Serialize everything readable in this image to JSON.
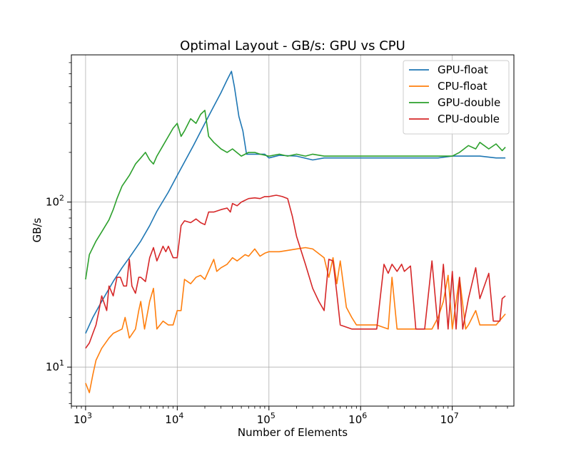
{
  "chart_data": {
    "type": "line",
    "title": "Optimal Layout - GB/s: GPU vs CPU",
    "xlabel": "Number of Elements",
    "ylabel": "GB/s",
    "xscale": "log",
    "yscale": "log",
    "xlim": [
      700,
      47000000
    ],
    "ylim": [
      5.8,
      780
    ],
    "grid": true,
    "legend_position": "top-right",
    "x_ticks": [
      {
        "base": "10",
        "exp": "3",
        "value": 1000
      },
      {
        "base": "10",
        "exp": "4",
        "value": 10000
      },
      {
        "base": "10",
        "exp": "5",
        "value": 100000
      },
      {
        "base": "10",
        "exp": "6",
        "value": 1000000
      },
      {
        "base": "10",
        "exp": "7",
        "value": 10000000
      }
    ],
    "y_ticks": [
      {
        "base": "10",
        "exp": "1",
        "value": 10
      },
      {
        "base": "10",
        "exp": "2",
        "value": 100
      }
    ],
    "series": [
      {
        "name": "GPU-float",
        "color": "#1f77b4",
        "points": [
          [
            1000,
            16
          ],
          [
            1200,
            20
          ],
          [
            1500,
            25
          ],
          [
            2000,
            33
          ],
          [
            2500,
            40
          ],
          [
            3000,
            46
          ],
          [
            4000,
            58
          ],
          [
            5000,
            72
          ],
          [
            6000,
            88
          ],
          [
            8000,
            115
          ],
          [
            10000,
            145
          ],
          [
            15000,
            220
          ],
          [
            20000,
            300
          ],
          [
            25000,
            380
          ],
          [
            30000,
            460
          ],
          [
            35000,
            550
          ],
          [
            39000,
            620
          ],
          [
            42000,
            500
          ],
          [
            47000,
            330
          ],
          [
            52000,
            270
          ],
          [
            57000,
            195
          ],
          [
            70000,
            195
          ],
          [
            90000,
            195
          ],
          [
            100000,
            185
          ],
          [
            130000,
            192
          ],
          [
            200000,
            190
          ],
          [
            300000,
            180
          ],
          [
            400000,
            185
          ],
          [
            500000,
            185
          ],
          [
            700000,
            185
          ],
          [
            1000000,
            185
          ],
          [
            1500000,
            185
          ],
          [
            2000000,
            185
          ],
          [
            3000000,
            185
          ],
          [
            5000000,
            185
          ],
          [
            7000000,
            185
          ],
          [
            10000000,
            190
          ],
          [
            15000000,
            190
          ],
          [
            20000000,
            190
          ],
          [
            30000000,
            185
          ],
          [
            38000000,
            185
          ]
        ]
      },
      {
        "name": "CPU-float",
        "color": "#ff7f0e",
        "points": [
          [
            1000,
            8
          ],
          [
            1100,
            7
          ],
          [
            1200,
            9
          ],
          [
            1300,
            11
          ],
          [
            1500,
            13
          ],
          [
            1800,
            15
          ],
          [
            2000,
            16
          ],
          [
            2500,
            17
          ],
          [
            2700,
            20
          ],
          [
            3000,
            15
          ],
          [
            3500,
            17
          ],
          [
            3800,
            22
          ],
          [
            4000,
            25
          ],
          [
            4400,
            17
          ],
          [
            5000,
            25
          ],
          [
            5500,
            30
          ],
          [
            6000,
            17
          ],
          [
            7000,
            19
          ],
          [
            8000,
            18
          ],
          [
            9000,
            18
          ],
          [
            10000,
            22
          ],
          [
            11000,
            22
          ],
          [
            12000,
            34
          ],
          [
            14000,
            32
          ],
          [
            16000,
            35
          ],
          [
            18000,
            36
          ],
          [
            20000,
            34
          ],
          [
            25000,
            45
          ],
          [
            27000,
            38
          ],
          [
            30000,
            40
          ],
          [
            35000,
            42
          ],
          [
            40000,
            46
          ],
          [
            45000,
            44
          ],
          [
            55000,
            48
          ],
          [
            60000,
            47
          ],
          [
            70000,
            52
          ],
          [
            80000,
            47
          ],
          [
            90000,
            49
          ],
          [
            100000,
            50
          ],
          [
            130000,
            50
          ],
          [
            200000,
            52
          ],
          [
            250000,
            53
          ],
          [
            300000,
            52
          ],
          [
            400000,
            46
          ],
          [
            450000,
            35
          ],
          [
            500000,
            46
          ],
          [
            550000,
            32
          ],
          [
            600000,
            44
          ],
          [
            700000,
            23
          ],
          [
            800000,
            20
          ],
          [
            900000,
            18
          ],
          [
            1000000,
            18
          ],
          [
            1500000,
            18
          ],
          [
            2000000,
            17
          ],
          [
            2200000,
            35
          ],
          [
            2500000,
            17
          ],
          [
            3000000,
            17
          ],
          [
            4000000,
            17
          ],
          [
            5000000,
            17
          ],
          [
            6000000,
            17
          ],
          [
            7000000,
            20
          ],
          [
            8000000,
            25
          ],
          [
            9000000,
            36
          ],
          [
            10000000,
            17
          ],
          [
            12000000,
            35
          ],
          [
            14000000,
            17
          ],
          [
            15000000,
            18
          ],
          [
            18000000,
            22
          ],
          [
            20000000,
            18
          ],
          [
            25000000,
            18
          ],
          [
            30000000,
            18
          ],
          [
            38000000,
            21
          ]
        ]
      },
      {
        "name": "GPU-double",
        "color": "#2ca02c",
        "points": [
          [
            1000,
            34
          ],
          [
            1100,
            48
          ],
          [
            1300,
            58
          ],
          [
            1500,
            66
          ],
          [
            1800,
            78
          ],
          [
            2000,
            90
          ],
          [
            2200,
            105
          ],
          [
            2500,
            125
          ],
          [
            3000,
            145
          ],
          [
            3500,
            170
          ],
          [
            4000,
            185
          ],
          [
            4500,
            200
          ],
          [
            5000,
            180
          ],
          [
            5500,
            170
          ],
          [
            6000,
            190
          ],
          [
            7000,
            220
          ],
          [
            8000,
            250
          ],
          [
            9000,
            280
          ],
          [
            10000,
            300
          ],
          [
            11000,
            250
          ],
          [
            12000,
            270
          ],
          [
            14000,
            320
          ],
          [
            16000,
            300
          ],
          [
            18000,
            340
          ],
          [
            20000,
            360
          ],
          [
            22000,
            250
          ],
          [
            25000,
            230
          ],
          [
            30000,
            210
          ],
          [
            35000,
            200
          ],
          [
            40000,
            210
          ],
          [
            50000,
            190
          ],
          [
            60000,
            200
          ],
          [
            70000,
            200
          ],
          [
            80000,
            195
          ],
          [
            100000,
            190
          ],
          [
            130000,
            195
          ],
          [
            160000,
            190
          ],
          [
            200000,
            195
          ],
          [
            250000,
            190
          ],
          [
            300000,
            195
          ],
          [
            400000,
            190
          ],
          [
            500000,
            190
          ],
          [
            700000,
            190
          ],
          [
            1000000,
            190
          ],
          [
            1500000,
            190
          ],
          [
            2000000,
            190
          ],
          [
            3000000,
            190
          ],
          [
            5000000,
            190
          ],
          [
            7000000,
            190
          ],
          [
            10000000,
            190
          ],
          [
            12000000,
            200
          ],
          [
            15000000,
            220
          ],
          [
            18000000,
            210
          ],
          [
            20000000,
            230
          ],
          [
            25000000,
            210
          ],
          [
            30000000,
            225
          ],
          [
            35000000,
            205
          ],
          [
            38000000,
            215
          ]
        ]
      },
      {
        "name": "CPU-double",
        "color": "#d62728",
        "points": [
          [
            1000,
            13
          ],
          [
            1100,
            14
          ],
          [
            1200,
            16
          ],
          [
            1300,
            18
          ],
          [
            1400,
            22
          ],
          [
            1500,
            27
          ],
          [
            1700,
            22
          ],
          [
            1800,
            31
          ],
          [
            2000,
            27
          ],
          [
            2200,
            35
          ],
          [
            2400,
            35
          ],
          [
            2600,
            31
          ],
          [
            2800,
            31
          ],
          [
            3000,
            45
          ],
          [
            3200,
            31
          ],
          [
            3500,
            28
          ],
          [
            3800,
            35
          ],
          [
            4000,
            35
          ],
          [
            4500,
            33
          ],
          [
            5000,
            46
          ],
          [
            5500,
            53
          ],
          [
            6000,
            44
          ],
          [
            7000,
            54
          ],
          [
            7500,
            50
          ],
          [
            8000,
            54
          ],
          [
            9000,
            46
          ],
          [
            10000,
            46
          ],
          [
            11000,
            72
          ],
          [
            12000,
            77
          ],
          [
            14000,
            75
          ],
          [
            16000,
            79
          ],
          [
            18000,
            75
          ],
          [
            20000,
            73
          ],
          [
            22000,
            87
          ],
          [
            25000,
            87
          ],
          [
            30000,
            90
          ],
          [
            35000,
            92
          ],
          [
            38000,
            87
          ],
          [
            40000,
            98
          ],
          [
            45000,
            95
          ],
          [
            50000,
            100
          ],
          [
            60000,
            105
          ],
          [
            70000,
            106
          ],
          [
            80000,
            105
          ],
          [
            90000,
            108
          ],
          [
            100000,
            108
          ],
          [
            120000,
            110
          ],
          [
            130000,
            109
          ],
          [
            140000,
            108
          ],
          [
            160000,
            105
          ],
          [
            180000,
            82
          ],
          [
            200000,
            62
          ],
          [
            250000,
            42
          ],
          [
            300000,
            30
          ],
          [
            350000,
            25
          ],
          [
            400000,
            22
          ],
          [
            450000,
            45
          ],
          [
            500000,
            44
          ],
          [
            550000,
            28
          ],
          [
            600000,
            18
          ],
          [
            800000,
            17
          ],
          [
            1000000,
            17
          ],
          [
            1500000,
            17
          ],
          [
            1800000,
            42
          ],
          [
            2000000,
            37
          ],
          [
            2200000,
            42
          ],
          [
            2500000,
            38
          ],
          [
            2800000,
            42
          ],
          [
            3000000,
            38
          ],
          [
            3500000,
            41
          ],
          [
            4000000,
            17
          ],
          [
            5000000,
            17
          ],
          [
            6000000,
            44
          ],
          [
            7000000,
            17
          ],
          [
            8000000,
            42
          ],
          [
            9000000,
            17
          ],
          [
            10000000,
            38
          ],
          [
            11000000,
            17
          ],
          [
            12000000,
            35
          ],
          [
            13000000,
            17
          ],
          [
            15000000,
            26
          ],
          [
            18000000,
            40
          ],
          [
            20000000,
            26
          ],
          [
            25000000,
            37
          ],
          [
            28000000,
            19
          ],
          [
            30000000,
            19
          ],
          [
            33000000,
            19
          ],
          [
            35000000,
            26
          ],
          [
            38000000,
            27
          ]
        ]
      }
    ]
  }
}
